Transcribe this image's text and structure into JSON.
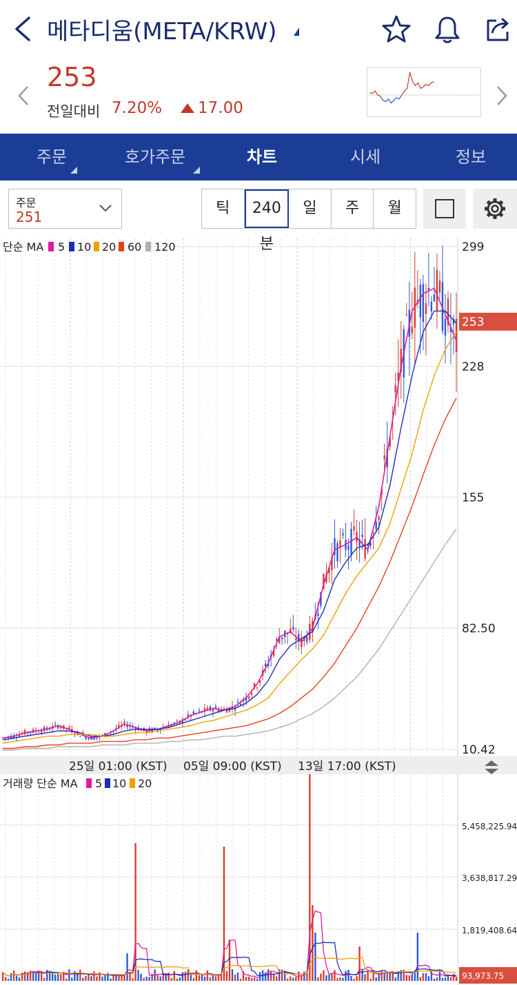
{
  "header": {
    "title": "메타디움(META/KRW)",
    "icons": [
      "back-arrow-icon",
      "caret-icon",
      "star-icon",
      "bell-icon",
      "share-icon"
    ]
  },
  "quote": {
    "price": "253",
    "change_label": "전일대비",
    "change_pct": "7.20%",
    "change_value": "17.00",
    "direction": "up",
    "up_color": "#c0392b"
  },
  "tabs": [
    {
      "label": "주문",
      "active": false
    },
    {
      "label": "호가주문",
      "active": false
    },
    {
      "label": "차트",
      "active": true
    },
    {
      "label": "시세",
      "active": false
    },
    {
      "label": "정보",
      "active": false
    }
  ],
  "toolbar": {
    "order_label": "주문",
    "order_value": "251",
    "periods": [
      "틱",
      "240분",
      "일",
      "주",
      "월"
    ],
    "selected_period": "240분"
  },
  "price_legend": {
    "prefix": "단순 MA",
    "items": [
      {
        "label": "5",
        "color": "#e0199f"
      },
      {
        "label": "10",
        "color": "#1a2fb5"
      },
      {
        "label": "20",
        "color": "#f0a000"
      },
      {
        "label": "60",
        "color": "#e8401c"
      },
      {
        "label": "120",
        "color": "#b0b0b0"
      }
    ]
  },
  "volume_legend": {
    "prefix": "거래량 단순 MA",
    "items": [
      {
        "label": "5",
        "color": "#e0199f"
      },
      {
        "label": "10",
        "color": "#1a2fb5"
      },
      {
        "label": "20",
        "color": "#f0a000"
      }
    ]
  },
  "chart_data": [
    {
      "type": "candlestick",
      "y_ticks": [
        "299",
        "228",
        "155",
        "82.50",
        "10.42"
      ],
      "ylim": [
        10.42,
        299
      ],
      "current_price_tag": "253",
      "x_labels": [
        "25일 01:00 (KST)",
        "05일 09:00 (KST)",
        "13일 17:00 (KST)"
      ],
      "series": [
        {
          "name": "5",
          "values": [
            17,
            18,
            20,
            21,
            22,
            24,
            22,
            19,
            17,
            18,
            21,
            25,
            23,
            21,
            22,
            24,
            26,
            30,
            32,
            34,
            33,
            35,
            40,
            48,
            60,
            75,
            78,
            72,
            80,
            105,
            125,
            128,
            132,
            125,
            150,
            190,
            230,
            262,
            272,
            275,
            260,
            245
          ]
        },
        {
          "name": "10",
          "values": [
            16,
            17,
            18,
            19,
            20,
            21,
            21,
            20,
            18,
            18,
            19,
            21,
            22,
            22,
            22,
            23,
            25,
            27,
            29,
            31,
            33,
            34,
            37,
            42,
            50,
            62,
            70,
            74,
            78,
            90,
            108,
            118,
            126,
            128,
            138,
            162,
            195,
            225,
            250,
            262,
            262,
            255
          ]
        },
        {
          "name": "20",
          "values": [
            14,
            15,
            16,
            17,
            18,
            18,
            19,
            19,
            19,
            18,
            18,
            19,
            20,
            20,
            21,
            22,
            23,
            24,
            26,
            27,
            29,
            31,
            33,
            36,
            40,
            48,
            55,
            62,
            68,
            76,
            88,
            100,
            110,
            118,
            126,
            140,
            160,
            180,
            205,
            225,
            240,
            250
          ]
        },
        {
          "name": "60",
          "values": [
            11,
            11,
            12,
            12,
            13,
            13,
            14,
            14,
            14,
            15,
            15,
            15,
            16,
            16,
            17,
            17,
            18,
            19,
            20,
            21,
            22,
            23,
            24,
            26,
            28,
            31,
            35,
            40,
            45,
            52,
            60,
            70,
            80,
            92,
            104,
            118,
            134,
            150,
            168,
            185,
            200,
            212
          ]
        },
        {
          "name": "120",
          "values": [
            10,
            10,
            11,
            11,
            11,
            12,
            12,
            12,
            12,
            13,
            13,
            13,
            14,
            14,
            14,
            15,
            15,
            16,
            16,
            17,
            18,
            18,
            19,
            20,
            21,
            23,
            25,
            28,
            31,
            35,
            40,
            46,
            52,
            60,
            68,
            78,
            88,
            98,
            108,
            118,
            128,
            137
          ]
        }
      ]
    },
    {
      "type": "bar",
      "y_ticks": [
        "5,458,225.94",
        "3,638,817.29",
        "1,819,408.64"
      ],
      "current_volume_tag": "93,973.75",
      "series_names": [
        "5",
        "10",
        "20"
      ]
    }
  ]
}
